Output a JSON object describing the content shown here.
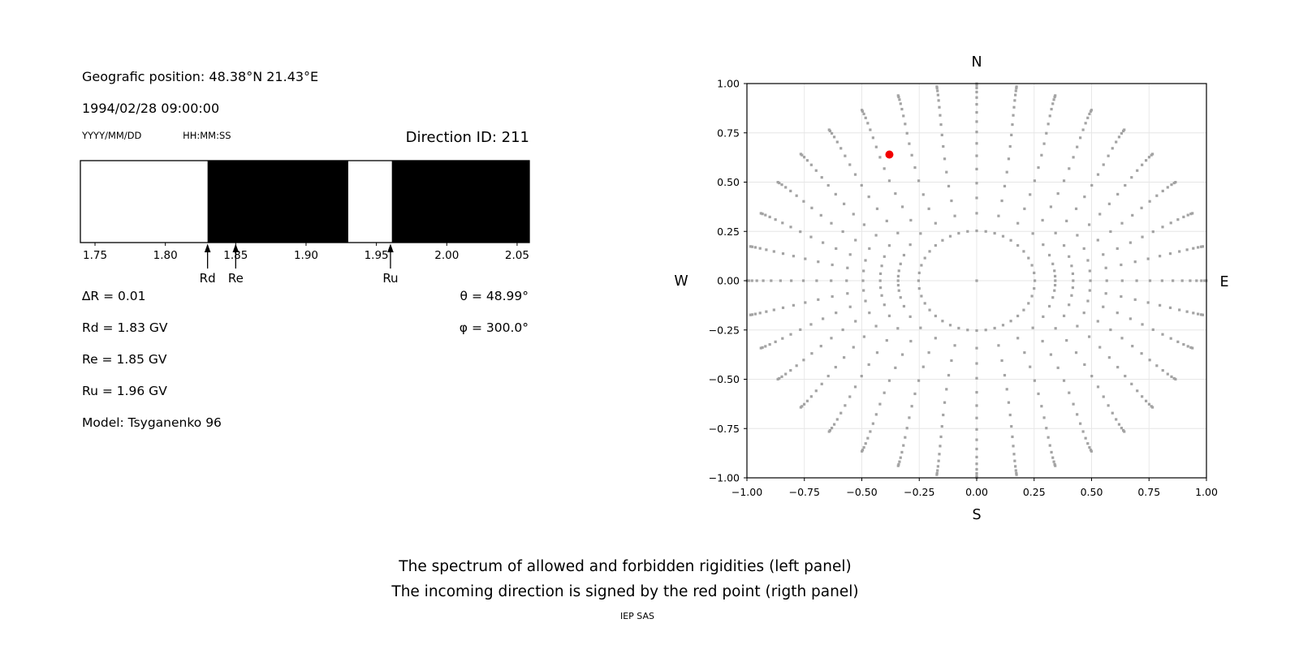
{
  "info_panel": {
    "position_line": "Geografic position: 48.38°N 21.43°E",
    "datetime_line": "1994/02/28 09:00:00",
    "date_format_label": "YYYY/MM/DD",
    "time_format_label": "HH:MM:SS",
    "direction_id": "Direction ID: 211",
    "rows": [
      {
        "left": "∆R = 0.01",
        "right": "θ = 48.99°"
      },
      {
        "left": "Rd = 1.83 GV",
        "right": "φ = 300.0°"
      },
      {
        "left": "Re = 1.85 GV",
        "right": ""
      },
      {
        "left": "Ru = 1.96 GV",
        "right": ""
      },
      {
        "left": "Model: Tsyganenko 96",
        "right": ""
      }
    ]
  },
  "caption": {
    "line1": "The spectrum of allowed and forbidden rigidities (left panel)",
    "line2": "The incoming direction is signed by the red point (rigth panel)",
    "footer": "IEP SAS"
  },
  "colors": {
    "text": "#000000",
    "spine": "#000000",
    "grid": "#e6e6e6",
    "dot": "#9c9c9c",
    "red": "#f20000",
    "allowed_white": "#ffffff",
    "forbidden_black": "#000000"
  },
  "chart_data": [
    {
      "id": "rigidity-spectrum",
      "type": "bar",
      "title": "",
      "xlim": [
        1.7396,
        2.0587
      ],
      "xticks": [
        1.75,
        1.8,
        1.85,
        1.9,
        1.95,
        2.0,
        2.05
      ],
      "xtick_labels": [
        "1.75",
        "1.80",
        "1.85",
        "1.90",
        "1.95",
        "2.00",
        "2.05"
      ],
      "segments": [
        {
          "from": 1.7396,
          "to": 1.83,
          "color": "#ffffff"
        },
        {
          "from": 1.83,
          "to": 1.93,
          "color": "#000000"
        },
        {
          "from": 1.93,
          "to": 1.961,
          "color": "#ffffff"
        },
        {
          "from": 1.961,
          "to": 2.0587,
          "color": "#000000"
        }
      ],
      "arrows": [
        {
          "label": "Rd",
          "value": 1.83
        },
        {
          "label": "Re",
          "value": 1.85
        },
        {
          "label": "Ru",
          "value": 1.96
        }
      ]
    },
    {
      "id": "direction-map",
      "type": "scatter",
      "xlim": [
        -1,
        1
      ],
      "ylim": [
        -1,
        1
      ],
      "xticks": [
        -1,
        -0.75,
        -0.5,
        -0.25,
        0,
        0.25,
        0.5,
        0.75,
        1
      ],
      "yticks": [
        1,
        0.75,
        0.5,
        0.25,
        0,
        -0.25,
        -0.5,
        -0.75,
        -1
      ],
      "xtick_labels": [
        "−1.00",
        "−0.75",
        "−0.50",
        "−0.25",
        "0.00",
        "0.25",
        "0.50",
        "0.75",
        "1.00"
      ],
      "ytick_labels": [
        "1.00",
        "0.75",
        "0.50",
        "0.25",
        "0.00",
        "−0.25",
        "−0.50",
        "−0.75",
        "−1.00"
      ],
      "compass": {
        "top": "N",
        "bottom": "S",
        "left": "W",
        "right": "E"
      },
      "grid": true,
      "red_point": {
        "x": -0.38,
        "y": 0.64,
        "theta_deg": 48.99,
        "phi_deg": 300.0
      },
      "pattern": {
        "azimuths": {
          "start_deg": 0,
          "step_deg": 10,
          "count": 36
        },
        "ray": {
          "theta_start_deg": 20,
          "theta_end_deg": 87.6,
          "points": 15,
          "radius_mapping": "sin(theta)",
          "curvature_deg": 18,
          "curvature_exp": 1.4
        },
        "ring": {
          "radius": 0.253,
          "points": 40
        },
        "center_dot": true
      }
    }
  ]
}
